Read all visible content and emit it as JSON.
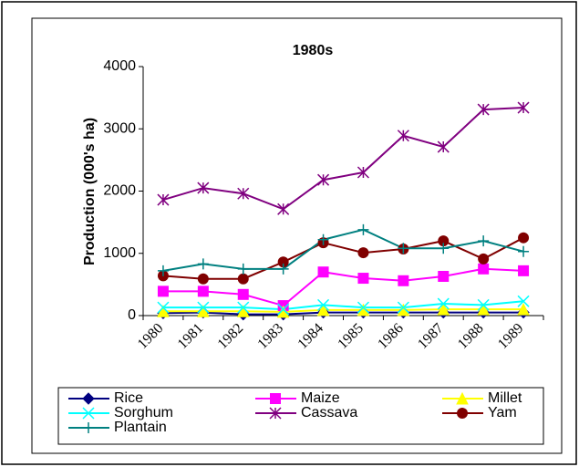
{
  "chart_data": {
    "type": "line",
    "title": "1980s",
    "y_label": "Production (000's ha)",
    "categories": [
      "1980",
      "1981",
      "1982",
      "1983",
      "1984",
      "1985",
      "1986",
      "1987",
      "1988",
      "1989"
    ],
    "ylim": [
      0,
      4000
    ],
    "yticks": [
      0,
      1000,
      2000,
      3000,
      4000
    ],
    "grid": false,
    "legend": "bottom",
    "series": [
      {
        "name": "Rice",
        "color": "#000080",
        "marker": "diamond",
        "values": [
          40,
          50,
          20,
          20,
          50,
          50,
          50,
          50,
          50,
          50
        ]
      },
      {
        "name": "Maize",
        "color": "#ff00ff",
        "marker": "square",
        "values": [
          390,
          390,
          340,
          160,
          700,
          600,
          560,
          630,
          750,
          720
        ]
      },
      {
        "name": "Millet",
        "color": "#ffff00",
        "marker": "triangle",
        "values": [
          70,
          70,
          70,
          60,
          90,
          90,
          90,
          100,
          100,
          100
        ]
      },
      {
        "name": "Sorghum",
        "color": "#00ffff",
        "marker": "x",
        "values": [
          130,
          130,
          130,
          100,
          170,
          130,
          130,
          190,
          170,
          230
        ]
      },
      {
        "name": "Cassava",
        "color": "#800080",
        "marker": "star",
        "values": [
          1860,
          2050,
          1960,
          1710,
          2180,
          2300,
          2890,
          2710,
          3310,
          3340
        ]
      },
      {
        "name": "Yam",
        "color": "#800000",
        "marker": "circle",
        "values": [
          640,
          590,
          590,
          860,
          1170,
          1010,
          1070,
          1200,
          910,
          1250
        ]
      },
      {
        "name": "Plantain",
        "color": "#008080",
        "marker": "plus",
        "values": [
          720,
          830,
          750,
          750,
          1220,
          1380,
          1080,
          1080,
          1200,
          1030
        ]
      }
    ]
  }
}
